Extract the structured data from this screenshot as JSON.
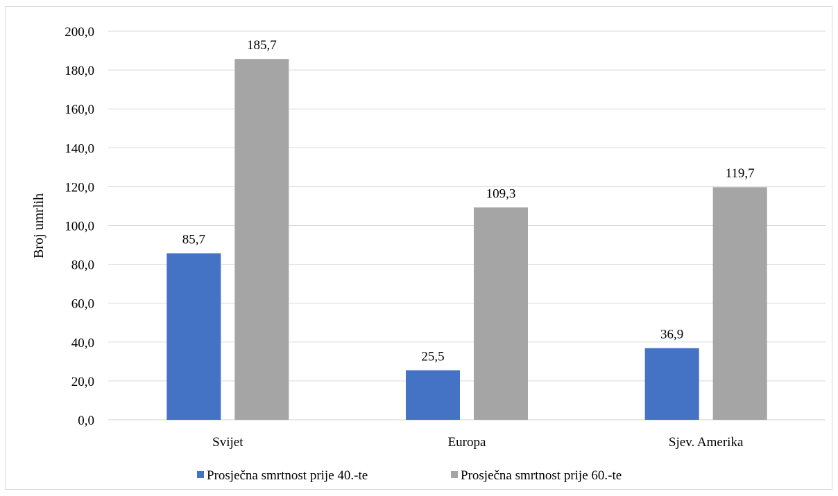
{
  "chart_data": {
    "type": "bar",
    "title": "",
    "xlabel": "",
    "ylabel": "Broj umrlih",
    "categories": [
      "Svijet",
      "Europa",
      "Sjev. Amerika"
    ],
    "series": [
      {
        "name": "Prosječna smrtnost prije 40.-te",
        "color": "#4472c4",
        "values": [
          85.7,
          25.5,
          36.9
        ],
        "labels": [
          "85,7",
          "25,5",
          "36,9"
        ]
      },
      {
        "name": "Prosječna smrtnost prije 60.-te",
        "color": "#a5a5a5",
        "values": [
          185.7,
          109.3,
          119.7
        ],
        "labels": [
          "185,7",
          "109,3",
          "119,7"
        ]
      }
    ],
    "ylim": [
      0,
      200
    ],
    "yticks": [
      0,
      20,
      40,
      60,
      80,
      100,
      120,
      140,
      160,
      180,
      200
    ],
    "ytick_labels": [
      "0,0",
      "20,0",
      "40,0",
      "60,0",
      "80,0",
      "100,0",
      "120,0",
      "140,0",
      "160,0",
      "180,0",
      "200,0"
    ],
    "grid": true,
    "legend_position": "bottom"
  }
}
